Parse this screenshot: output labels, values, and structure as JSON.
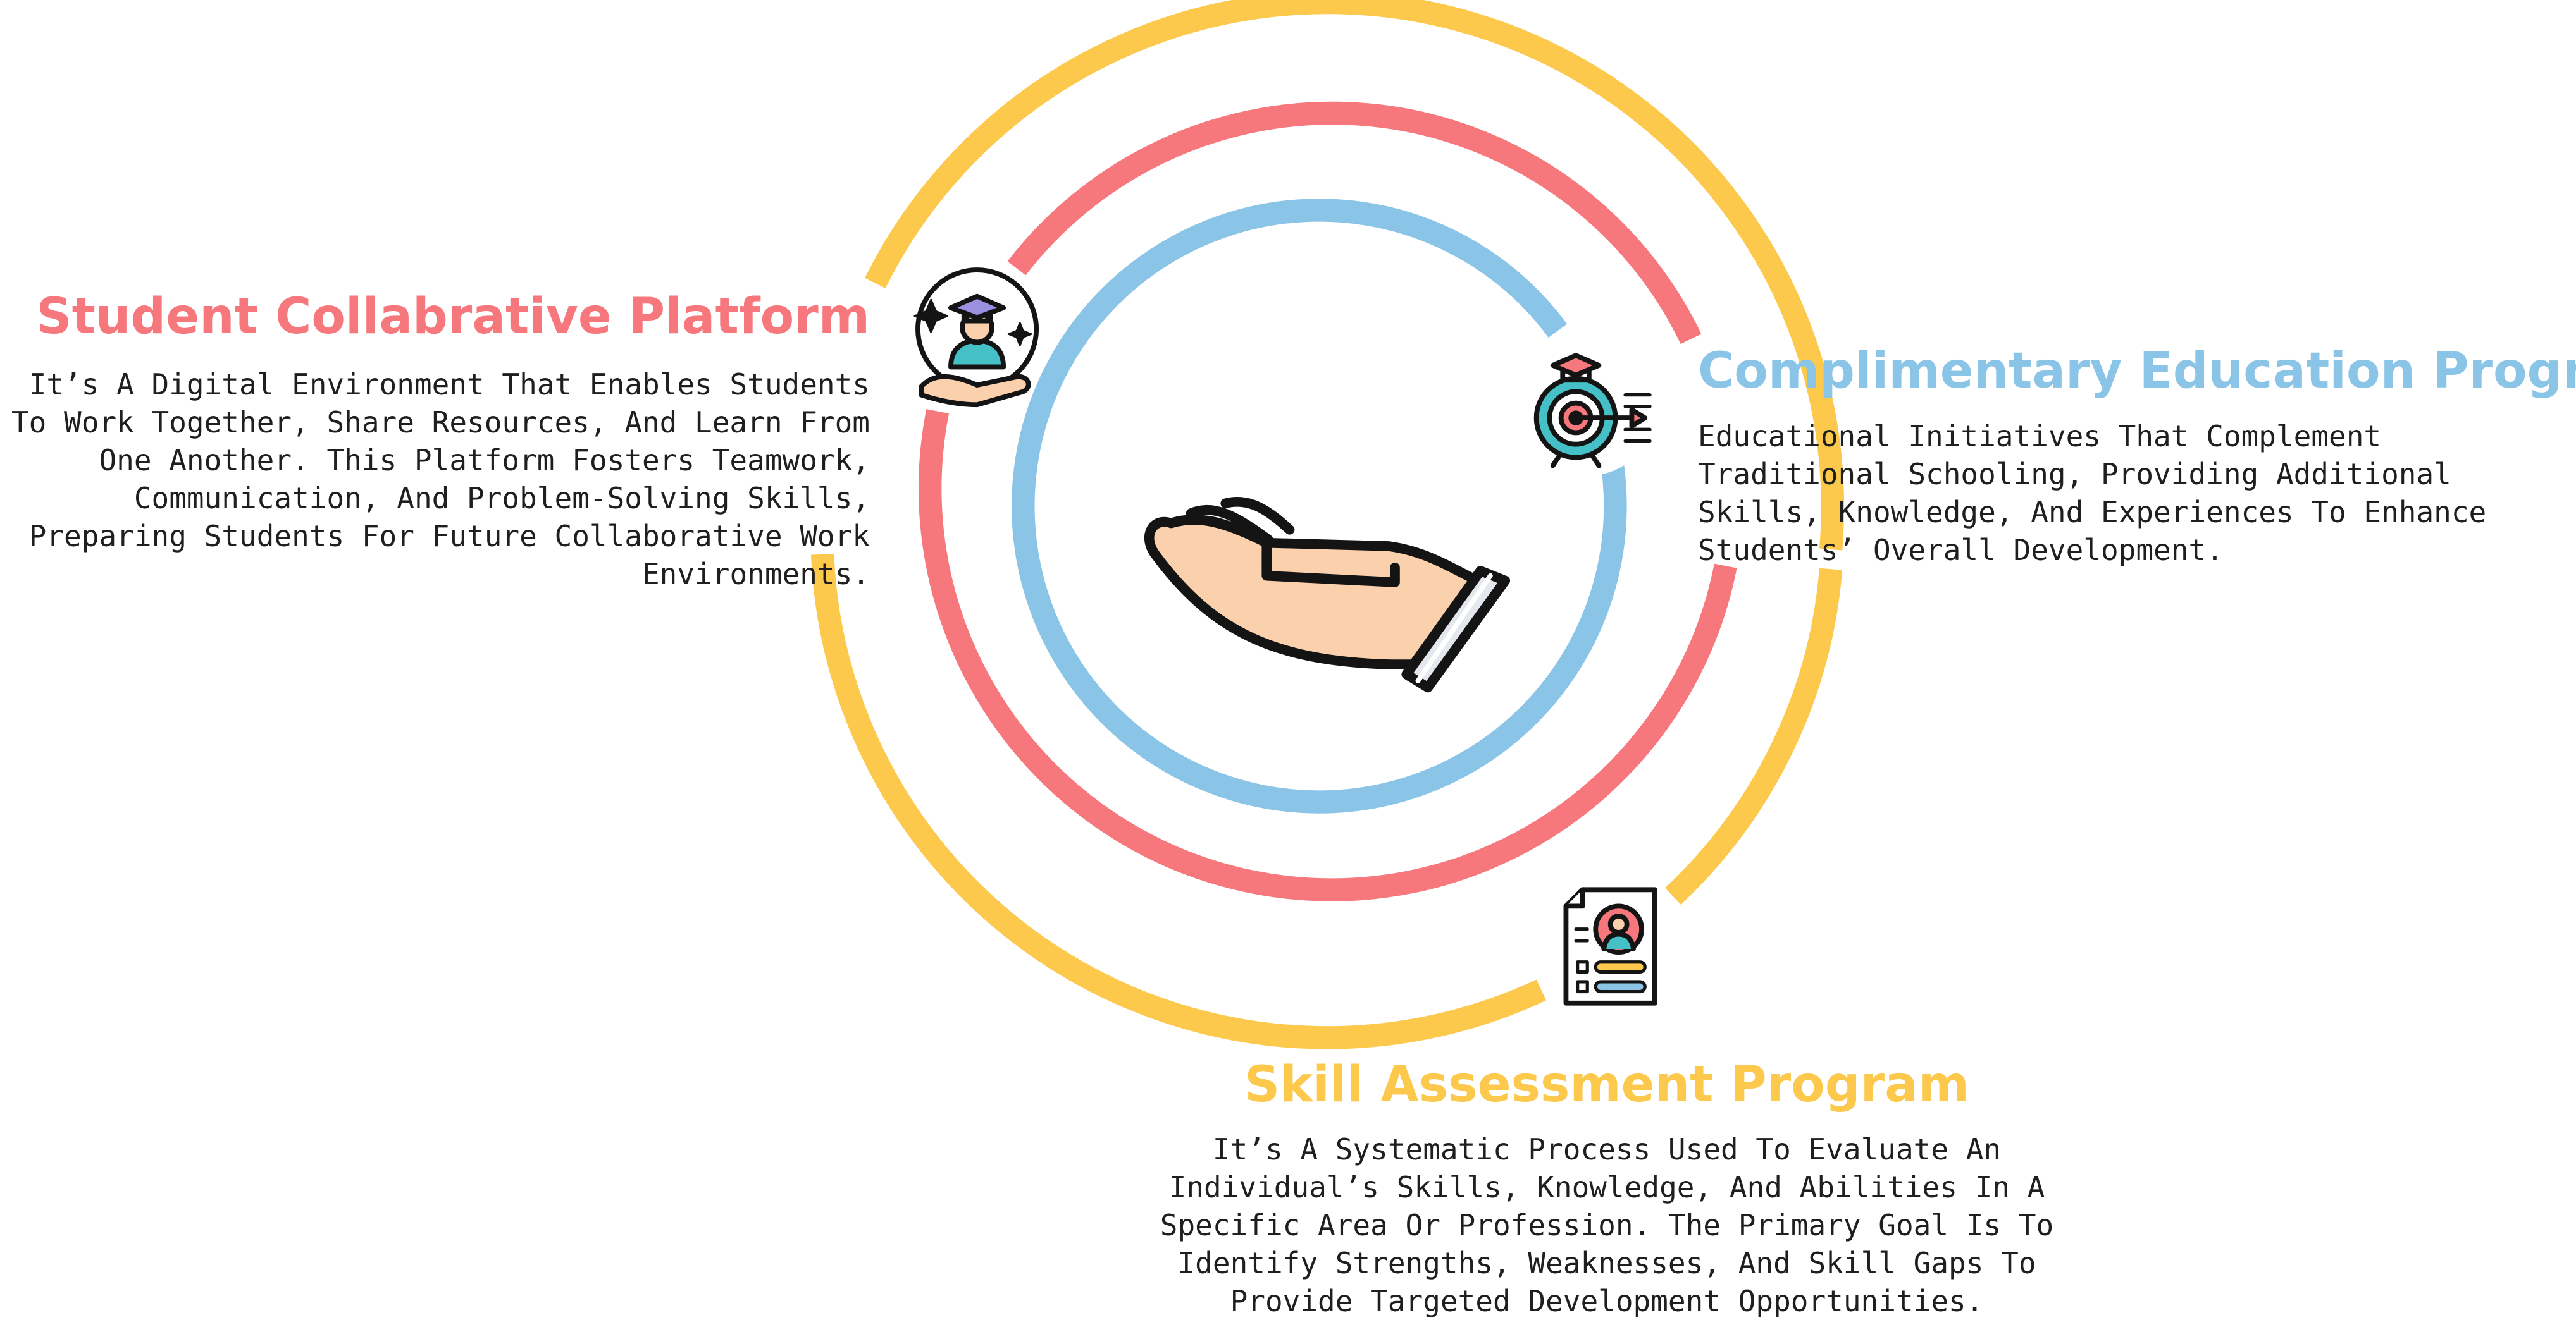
{
  "diagram": {
    "rings": [
      {
        "name": "outer-ring",
        "color": "#fcc94d"
      },
      {
        "name": "middle-ring",
        "color": "#f7787c"
      },
      {
        "name": "inner-ring",
        "color": "#8ac5e8"
      }
    ],
    "center_icon": "open-hand-icon"
  },
  "sections": {
    "collaborative": {
      "title": "Student Collabrative Platform",
      "description": "It’s A Digital Environment That Enables Students To Work Together, Share Resources, And Learn From One Another. This Platform Fosters Teamwork, Communication, And Problem-Solving Skills, Preparing Students For Future Collaborative Work Environments.",
      "icon": "graduate-student-hand-icon",
      "color": "#f7787c"
    },
    "complimentary": {
      "title": "Complimentary Education Programs",
      "description": "Educational Initiatives That Complement Traditional Schooling, Providing Additional Skills, Knowledge, And Experiences To Enhance Students’ Overall Development.",
      "icon": "target-graduation-cap-icon",
      "color": "#8ac5e8"
    },
    "skill": {
      "title": "Skill Assessment Program",
      "description": "It’s A Systematic Process Used To Evaluate An Individual’s Skills, Knowledge, And Abilities In A Specific Area Or Profession. The Primary Goal Is To Identify Strengths, Weaknesses, And Skill Gaps To Provide Targeted Development Opportunities.",
      "icon": "assessment-report-icon",
      "color": "#fcc94d"
    }
  }
}
